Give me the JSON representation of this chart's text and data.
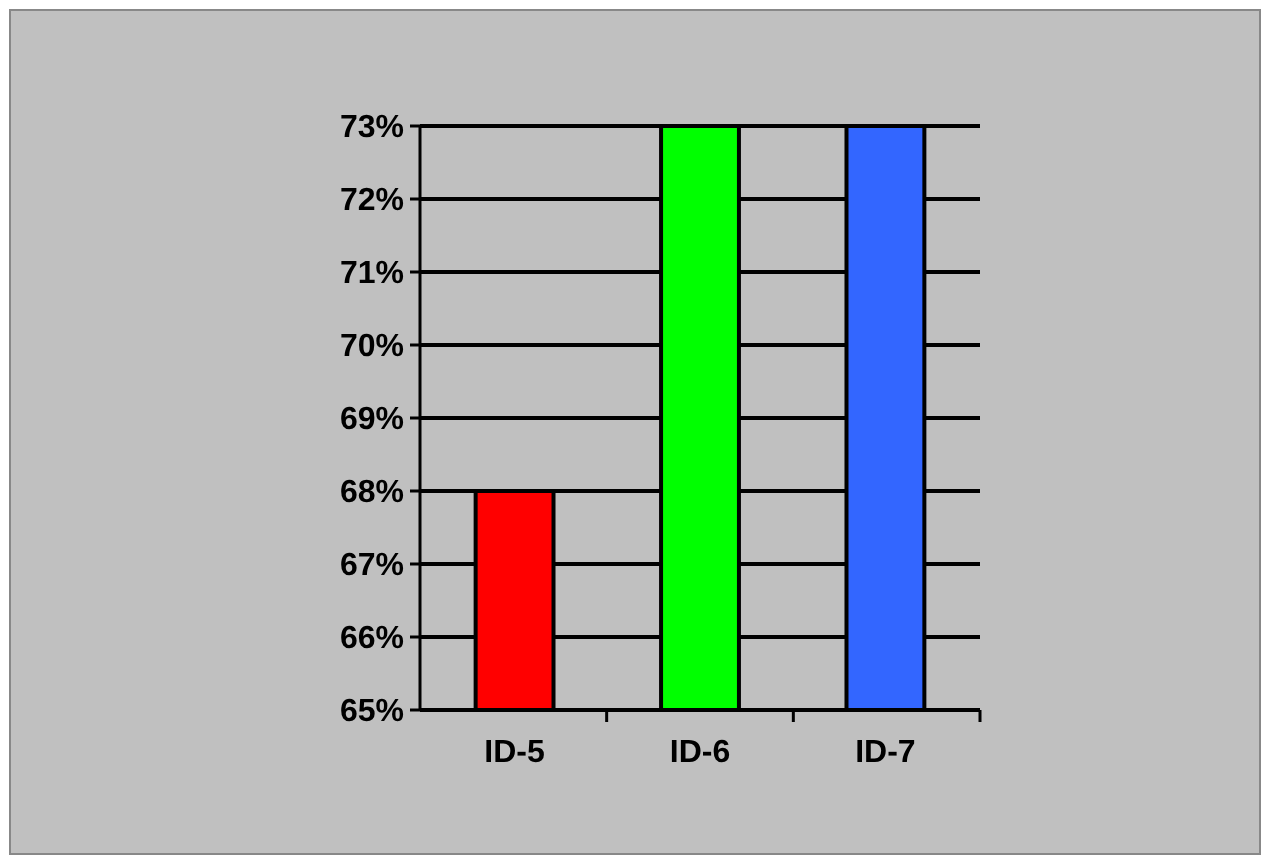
{
  "chart_data": {
    "type": "bar",
    "categories": [
      "ID-5",
      "ID-6",
      "ID-7"
    ],
    "values": [
      68,
      73,
      73
    ],
    "colors": [
      "#ff0000",
      "#00ff00",
      "#3366ff"
    ],
    "ylim": [
      65,
      73
    ],
    "yticks": [
      {
        "value": 65,
        "label": "65%"
      },
      {
        "value": 66,
        "label": "66%"
      },
      {
        "value": 67,
        "label": "67%"
      },
      {
        "value": 68,
        "label": "68%"
      },
      {
        "value": 69,
        "label": "69%"
      },
      {
        "value": 70,
        "label": "70%"
      },
      {
        "value": 71,
        "label": "71%"
      },
      {
        "value": 72,
        "label": "72%"
      },
      {
        "value": 73,
        "label": "73%"
      }
    ],
    "grid": "y"
  }
}
